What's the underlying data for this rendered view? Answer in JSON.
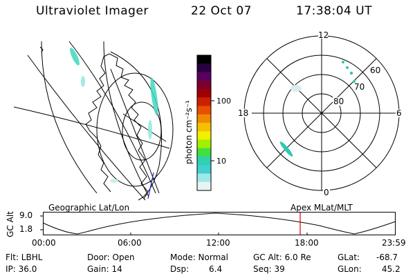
{
  "header": {
    "instrument": "Ultraviolet Imager",
    "date": "22 Oct 07",
    "time": "17:38:04 UT"
  },
  "colorbar": {
    "label": "photon cm⁻²s⁻¹",
    "ticks": [
      "100",
      "10"
    ],
    "colors": [
      "#000000",
      "#2a0040",
      "#5a0060",
      "#7a0030",
      "#a00000",
      "#cc2000",
      "#e85000",
      "#f08a00",
      "#f4c000",
      "#f0f000",
      "#a0f000",
      "#40e040",
      "#30d0b0",
      "#40d0d0",
      "#a0e8e8",
      "#e8f4f4"
    ]
  },
  "polar": {
    "mlt_labels": [
      "12",
      "18",
      "6",
      "0"
    ],
    "lat_labels": [
      "60",
      "70",
      "80"
    ]
  },
  "labels": {
    "geo": "Geographic Lat/Lon",
    "apex": "Apex MLat/MLT"
  },
  "altitude": {
    "axis_label": "GC Alt",
    "yticks": [
      "9.0",
      "1.8"
    ],
    "xticks": [
      "00:00",
      "06:00",
      "12:00",
      "18:00",
      "23:59"
    ],
    "marker_color": "#dd0000"
  },
  "footer": {
    "filter": "Flt: LBHL",
    "ip": "IP: 36.0",
    "door": "Door: Open",
    "gain": "Gain: 14",
    "mode": "Mode: Normal",
    "dsp_label": "Dsp:",
    "dsp_value": "6.4",
    "gcalt": "GC Alt: 6.0 Re",
    "seq": "Seq: 39",
    "glat_label": "GLat:",
    "glat_value": "-68.7",
    "glon_label": "GLon:",
    "glon_value": "45.2"
  }
}
